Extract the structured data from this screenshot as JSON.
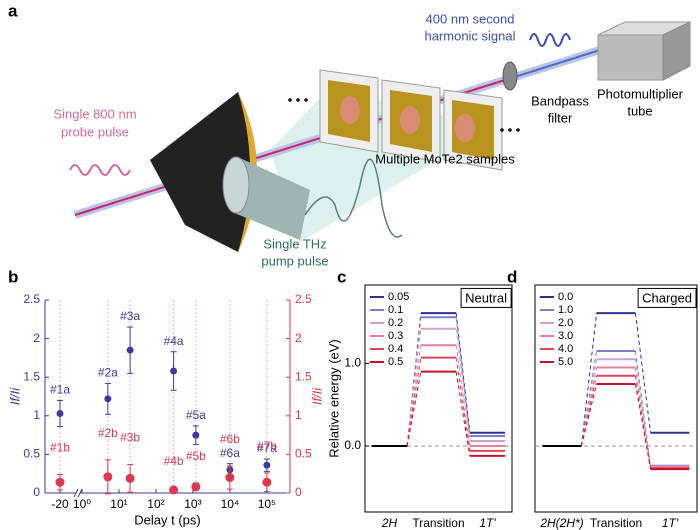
{
  "diagram": {
    "panel_label": "a",
    "labels": {
      "shg": [
        "400 nm second",
        "harmonic signal"
      ],
      "pmt": [
        "Photomultiplier",
        "tube"
      ],
      "filter": [
        "Bandpass",
        "filter"
      ],
      "probe": [
        "Single 800 nm",
        "probe pulse"
      ],
      "samples": [
        "Multiple MoTe2 samples"
      ],
      "pump": [
        "Single THz",
        "pump pulse"
      ]
    }
  },
  "chart_data": [
    {
      "type": "scatter",
      "panel_label": "b",
      "xlabel": "Delay t (ps)",
      "ylabel": "If/Ii",
      "y2label": "If/Ii",
      "x": [
        -20,
        5,
        20,
        300,
        1200,
        10000,
        100000
      ],
      "xscale": "log",
      "xlim": [
        -40,
        200000
      ],
      "xticks": [
        -20,
        {
          "value": 1,
          "label": "10⁰"
        },
        {
          "value": 10,
          "label": "10¹"
        },
        {
          "value": 100,
          "label": "10²"
        },
        {
          "value": 1000,
          "label": "10³"
        },
        {
          "value": 10000,
          "label": "10⁴"
        },
        {
          "value": 100000,
          "label": "10⁵"
        }
      ],
      "ylim": [
        0,
        2.5
      ],
      "yticks": [
        0,
        0.5,
        1,
        1.5,
        2,
        2.5
      ],
      "y2lim": [
        0,
        2.5
      ],
      "y2ticks": [
        0,
        0.5,
        1,
        1.5,
        2,
        2.5
      ],
      "series": [
        {
          "color": "#3b3b9e",
          "values": [
            1.03,
            1.22,
            1.85,
            1.58,
            0.75,
            0.3,
            0.36
          ],
          "errors": [
            0.17,
            0.2,
            0.3,
            0.25,
            0.12,
            0.08,
            0.08
          ],
          "point_labels": [
            "#1a",
            "#2a",
            "#3a",
            "#4a",
            "#5a",
            "#6a",
            "#7a"
          ]
        },
        {
          "color": "#d9384f",
          "axis": "y2",
          "values": [
            0.14,
            0.21,
            0.19,
            0.04,
            0.08,
            0.2,
            0.14
          ],
          "errors": [
            0.1,
            0.22,
            0.18,
            0.03,
            0.05,
            0.15,
            0.12
          ],
          "point_labels": [
            "#1b",
            "#2b",
            "#3b",
            "#4b",
            "#5b",
            "#6b",
            "#7b"
          ]
        }
      ]
    },
    {
      "type": "energy_levels",
      "panel_label": "c",
      "title": "Neutral",
      "ylabel": "Relative energy (eV)",
      "categories": [
        "2H",
        "Transition",
        "1T'"
      ],
      "ylim": [
        -0.8,
        1.95
      ],
      "yticks": [
        {
          "value": 0,
          "label": "0.0"
        },
        {
          "value": 1,
          "label": "1.0"
        }
      ],
      "ground_color": "#000000",
      "series": [
        {
          "name": "0.05",
          "color": "#2e3192",
          "values": [
            0,
            1.61,
            0.16
          ]
        },
        {
          "name": "0.1",
          "color": "#7b7fc4",
          "values": [
            0,
            1.56,
            0.12
          ]
        },
        {
          "name": "0.2",
          "color": "#c9a3c9",
          "values": [
            0,
            1.42,
            0.06
          ]
        },
        {
          "name": "0.3",
          "color": "#e87f9a",
          "values": [
            0,
            1.22,
            0.0
          ]
        },
        {
          "name": "0.4",
          "color": "#e0445f",
          "values": [
            0,
            1.07,
            -0.06
          ]
        },
        {
          "name": "0.5",
          "color": "#c8102e",
          "values": [
            0,
            0.9,
            -0.12
          ]
        }
      ]
    },
    {
      "type": "energy_levels",
      "panel_label": "d",
      "title": "Charged",
      "categories": [
        "2H(2H*)",
        "Transition",
        "1T'"
      ],
      "ylim": [
        -0.8,
        1.95
      ],
      "ground_color": "#000000",
      "series": [
        {
          "name": "0.0",
          "color": "#2e3192",
          "values": [
            0,
            1.61,
            0.16
          ]
        },
        {
          "name": "1.0",
          "color": "#7b7fc4",
          "values": [
            0,
            1.15,
            -0.24
          ]
        },
        {
          "name": "2.0",
          "color": "#c9a3c9",
          "values": [
            0,
            1.05,
            -0.25
          ]
        },
        {
          "name": "3.0",
          "color": "#e87f9a",
          "values": [
            0,
            0.95,
            -0.26
          ]
        },
        {
          "name": "4.0",
          "color": "#e0445f",
          "values": [
            0,
            0.85,
            -0.27
          ]
        },
        {
          "name": "5.0",
          "color": "#c8102e",
          "values": [
            0,
            0.75,
            -0.28
          ]
        }
      ]
    }
  ]
}
